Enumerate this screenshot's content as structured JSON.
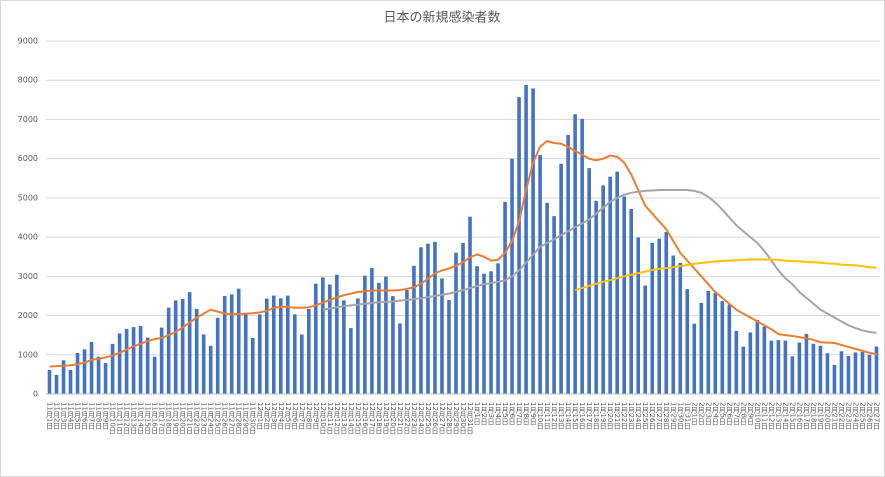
{
  "chart_data": {
    "type": "bar",
    "title": "日本の新規感染者数",
    "categories": [
      "11月1日",
      "11月2日",
      "11月3日",
      "11月4日",
      "11月5日",
      "11月6日",
      "11月7日",
      "11月8日",
      "11月9日",
      "11月10日",
      "11月11日",
      "11月12日",
      "11月13日",
      "11月14日",
      "11月15日",
      "11月16日",
      "11月17日",
      "11月18日",
      "11月19日",
      "11月20日",
      "11月21日",
      "11月22日",
      "11月23日",
      "11月24日",
      "11月25日",
      "11月26日",
      "11月27日",
      "11月28日",
      "11月29日",
      "11月30日",
      "12月1日",
      "12月2日",
      "12月3日",
      "12月4日",
      "12月5日",
      "12月6日",
      "12月7日",
      "12月8日",
      "12月9日",
      "12月10日",
      "12月11日",
      "12月12日",
      "12月13日",
      "12月14日",
      "12月15日",
      "12月16日",
      "12月17日",
      "12月18日",
      "12月19日",
      "12月20日",
      "12月21日",
      "12月22日",
      "12月23日",
      "12月24日",
      "12月25日",
      "12月26日",
      "12月27日",
      "12月28日",
      "12月29日",
      "12月30日",
      "12月31日",
      "1月1日",
      "1月2日",
      "1月3日",
      "1月4日",
      "1月5日",
      "1月6日",
      "1月7日",
      "1月8日",
      "1月9日",
      "1月10日",
      "1月11日",
      "1月12日",
      "1月13日",
      "1月14日",
      "1月15日",
      "1月16日",
      "1月17日",
      "1月18日",
      "1月19日",
      "1月20日",
      "1月21日",
      "1月22日",
      "1月23日",
      "1月24日",
      "1月25日",
      "1月26日",
      "1月27日",
      "1月28日",
      "1月29日",
      "1月30日",
      "1月31日",
      "2月1日",
      "2月2日",
      "2月3日",
      "2月4日",
      "2月5日",
      "2月6日",
      "2月7日",
      "2月8日",
      "2月9日",
      "2月10日",
      "2月11日",
      "2月12日",
      "2月13日",
      "2月14日",
      "2月15日",
      "2月16日",
      "2月17日",
      "2月18日",
      "2月19日",
      "2月20日",
      "2月21日",
      "2月22日",
      "2月23日",
      "2月24日",
      "2月25日",
      "2月26日",
      "2月27日"
    ],
    "series": [
      {
        "kind": "bar",
        "color": "#4472c4",
        "values": [
          613,
          487,
          858,
          616,
          1046,
          1138,
          1329,
          949,
          788,
          1278,
          1544,
          1661,
          1706,
          1735,
          1438,
          951,
          1693,
          2201,
          2386,
          2425,
          2596,
          2168,
          1520,
          1228,
          1945,
          2500,
          2539,
          2684,
          2068,
          1429,
          2030,
          2433,
          2510,
          2441,
          2508,
          2031,
          1518,
          2169,
          2811,
          2973,
          2790,
          3041,
          2388,
          1681,
          2436,
          3017,
          3211,
          2834,
          2991,
          2496,
          1799,
          2650,
          3270,
          3740,
          3832,
          3880,
          2947,
          2395,
          3604,
          3852,
          4520,
          3259,
          3068,
          3130,
          3330,
          4900,
          5998,
          7570,
          7882,
          7790,
          6094,
          4875,
          4536,
          5870,
          6605,
          7133,
          7014,
          5759,
          4925,
          5320,
          5540,
          5670,
          5035,
          4717,
          3990,
          2764,
          3853,
          3960,
          4130,
          3530,
          3343,
          2673,
          1792,
          2324,
          2631,
          2576,
          2369,
          2280,
          1609,
          1208,
          1569,
          1885,
          1720,
          1359,
          1375,
          1360,
          960,
          1310,
          1530,
          1280,
          1230,
          1040,
          740,
          1090,
          970,
          1060,
          1070,
          1000,
          1210
        ]
      },
      {
        "kind": "line",
        "color": "#ed7d31",
        "values": [
          700,
          710,
          720,
          730,
          760,
          800,
          870,
          900,
          930,
          980,
          1050,
          1130,
          1220,
          1280,
          1350,
          1400,
          1430,
          1500,
          1580,
          1700,
          1820,
          1950,
          2050,
          2150,
          2100,
          2050,
          2030,
          2040,
          2050,
          2060,
          2080,
          2120,
          2200,
          2220,
          2220,
          2200,
          2200,
          2210,
          2260,
          2330,
          2400,
          2460,
          2520,
          2560,
          2600,
          2620,
          2640,
          2640,
          2640,
          2640,
          2650,
          2680,
          2720,
          2810,
          2940,
          3080,
          3150,
          3200,
          3270,
          3360,
          3480,
          3560,
          3500,
          3400,
          3420,
          3600,
          3900,
          4400,
          5200,
          5900,
          6300,
          6450,
          6400,
          6380,
          6300,
          6200,
          6100,
          6000,
          5960,
          6000,
          6080,
          6050,
          5900,
          5600,
          5200,
          4800,
          4600,
          4400,
          4200,
          3900,
          3600,
          3400,
          3200,
          3000,
          2800,
          2600,
          2450,
          2300,
          2150,
          2050,
          1950,
          1850,
          1750,
          1650,
          1530,
          1500,
          1480,
          1450,
          1420,
          1380,
          1320,
          1310,
          1300,
          1250,
          1200,
          1150,
          1100,
          1050,
          1020
        ]
      },
      {
        "kind": "line",
        "color": "#a5a5a5",
        "values": [
          null,
          null,
          null,
          null,
          null,
          null,
          null,
          null,
          null,
          null,
          null,
          null,
          null,
          null,
          null,
          null,
          null,
          null,
          null,
          null,
          null,
          null,
          null,
          null,
          null,
          null,
          null,
          null,
          null,
          null,
          null,
          null,
          null,
          null,
          null,
          null,
          null,
          null,
          null,
          2150,
          2180,
          2210,
          2240,
          2260,
          2280,
          2300,
          2320,
          2340,
          2350,
          2360,
          2380,
          2400,
          2420,
          2440,
          2470,
          2500,
          2530,
          2560,
          2600,
          2650,
          2700,
          2750,
          2800,
          2830,
          2860,
          2900,
          3000,
          3150,
          3350,
          3550,
          3750,
          3850,
          3950,
          4050,
          4150,
          4250,
          4350,
          4450,
          4600,
          4750,
          4900,
          5000,
          5080,
          5130,
          5160,
          5180,
          5190,
          5200,
          5200,
          5200,
          5200,
          5200,
          5180,
          5130,
          5030,
          4880,
          4700,
          4500,
          4300,
          4150,
          4000,
          3850,
          3650,
          3400,
          3150,
          2950,
          2800,
          2600,
          2450,
          2300,
          2150,
          2050,
          1950,
          1850,
          1750,
          1680,
          1620,
          1580,
          1560
        ]
      },
      {
        "kind": "line",
        "color": "#ffc000",
        "values": [
          null,
          null,
          null,
          null,
          null,
          null,
          null,
          null,
          null,
          null,
          null,
          null,
          null,
          null,
          null,
          null,
          null,
          null,
          null,
          null,
          null,
          null,
          null,
          null,
          null,
          null,
          null,
          null,
          null,
          null,
          null,
          null,
          null,
          null,
          null,
          null,
          null,
          null,
          null,
          null,
          null,
          null,
          null,
          null,
          null,
          null,
          null,
          null,
          null,
          null,
          null,
          null,
          null,
          null,
          null,
          null,
          null,
          null,
          null,
          null,
          null,
          null,
          null,
          null,
          null,
          null,
          null,
          null,
          null,
          null,
          null,
          null,
          null,
          null,
          null,
          2650,
          2700,
          2760,
          2810,
          2860,
          2900,
          2950,
          3000,
          3040,
          3080,
          3120,
          3160,
          3190,
          3210,
          3230,
          3260,
          3290,
          3320,
          3340,
          3360,
          3380,
          3390,
          3400,
          3410,
          3420,
          3430,
          3430,
          3430,
          3430,
          3420,
          3400,
          3390,
          3380,
          3370,
          3360,
          3350,
          3330,
          3320,
          3300,
          3290,
          3280,
          3260,
          3230,
          3220
        ]
      }
    ],
    "ylim": [
      0,
      9000
    ],
    "yticks": [
      0,
      1000,
      2000,
      3000,
      4000,
      5000,
      6000,
      7000,
      8000,
      9000
    ],
    "grid": true
  }
}
